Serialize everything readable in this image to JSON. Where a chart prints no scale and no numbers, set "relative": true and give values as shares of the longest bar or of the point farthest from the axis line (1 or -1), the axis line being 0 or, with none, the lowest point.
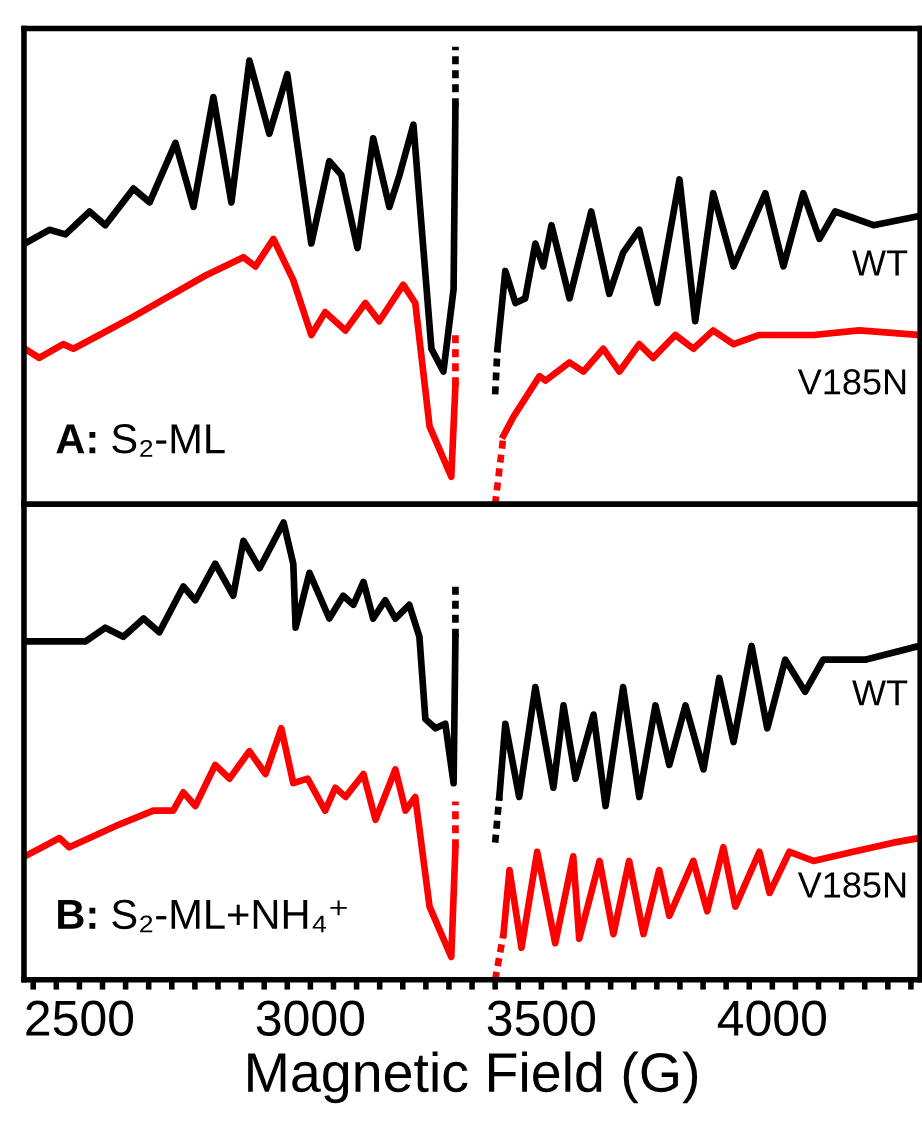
{
  "chart_data": [
    {
      "type": "line",
      "relative": true,
      "xlim": [
        2380,
        4320
      ],
      "tick_labels": false,
      "legend": false,
      "annotations": [
        "A: S₂-ML"
      ],
      "series": [
        {
          "color": "#000000",
          "x": [
            2382,
            2435,
            2470,
            2522,
            2556,
            2617,
            2652,
            2708,
            2747,
            2790,
            2829,
            2868,
            2911,
            2950,
            3002,
            3041,
            3067,
            3102,
            3136,
            3171,
            3193,
            3223,
            3262,
            3288,
            3310,
            3314
          ],
          "values": [
            0.57,
            0.6,
            0.59,
            0.64,
            0.61,
            0.69,
            0.66,
            0.79,
            0.65,
            0.89,
            0.66,
            0.97,
            0.81,
            0.94,
            0.57,
            0.75,
            0.72,
            0.56,
            0.8,
            0.65,
            0.72,
            0.83,
            0.34,
            0.29,
            0.47,
            0.87
          ]
        },
        {
          "color": "#000000",
          "line_style": "dotted",
          "x": [
            3314,
            3314
          ],
          "values": [
            0.87,
            1.0
          ]
        },
        {
          "color": "#000000",
          "line_style": "dotted",
          "x": [
            3400,
            3405
          ],
          "values": [
            0.24,
            0.34
          ]
        },
        {
          "name": "WT",
          "color": "#000000",
          "x": [
            3405,
            3422,
            3444,
            3465,
            3487,
            3504,
            3522,
            3561,
            3608,
            3647,
            3677,
            3712,
            3751,
            3799,
            3833,
            3872,
            3916,
            3985,
            4024,
            4067,
            4102,
            4136,
            4219,
            4318
          ],
          "values": [
            0.34,
            0.51,
            0.44,
            0.45,
            0.57,
            0.52,
            0.61,
            0.45,
            0.64,
            0.46,
            0.55,
            0.6,
            0.44,
            0.71,
            0.4,
            0.68,
            0.52,
            0.68,
            0.52,
            0.68,
            0.58,
            0.64,
            0.61,
            0.63
          ]
        },
        {
          "color": "#ff0000",
          "x": [
            2382,
            2413,
            2465,
            2487,
            2543,
            2617,
            2686,
            2773,
            2855,
            2881,
            2920,
            2963,
            3002,
            3032,
            3076,
            3119,
            3149,
            3201,
            3227,
            3258,
            3305,
            3314
          ],
          "values": [
            0.34,
            0.32,
            0.35,
            0.34,
            0.37,
            0.41,
            0.45,
            0.5,
            0.54,
            0.52,
            0.58,
            0.49,
            0.37,
            0.42,
            0.38,
            0.44,
            0.4,
            0.48,
            0.44,
            0.17,
            0.06,
            0.26
          ]
        },
        {
          "color": "#ff0000",
          "line_style": "dotted",
          "x": [
            3314,
            3314
          ],
          "values": [
            0.26,
            0.38
          ]
        },
        {
          "color": "#ff0000",
          "line_style": "dotted",
          "x": [
            3400,
            3418
          ],
          "values": [
            0.0,
            0.15
          ]
        },
        {
          "name": "V185N",
          "color": "#ff0000",
          "x": [
            3418,
            3439,
            3496,
            3509,
            3561,
            3591,
            3634,
            3669,
            3712,
            3742,
            3790,
            3829,
            3872,
            3916,
            3972,
            4089,
            4188,
            4318
          ],
          "values": [
            0.15,
            0.19,
            0.28,
            0.27,
            0.31,
            0.29,
            0.34,
            0.29,
            0.35,
            0.32,
            0.37,
            0.34,
            0.38,
            0.35,
            0.37,
            0.37,
            0.38,
            0.37
          ]
        }
      ]
    },
    {
      "type": "line",
      "relative": true,
      "xlim": [
        2380,
        4320
      ],
      "tick_labels": "x",
      "legend": false,
      "xlabel": "Magnetic Field (G)",
      "annotations": [
        "B: S₂-ML+NH₄⁺"
      ],
      "xticks": [
        {
          "value": 2400,
          "label": null
        },
        {
          "value": 2450,
          "label": null
        },
        2500,
        {
          "value": 2550,
          "label": null
        },
        {
          "value": 2600,
          "label": null
        },
        {
          "value": 2650,
          "label": null
        },
        {
          "value": 2700,
          "label": null
        },
        {
          "value": 2750,
          "label": null
        },
        {
          "value": 2800,
          "label": null
        },
        {
          "value": 2850,
          "label": null
        },
        {
          "value": 2900,
          "label": null
        },
        {
          "value": 2950,
          "label": null
        },
        3000,
        {
          "value": 3050,
          "label": null
        },
        {
          "value": 3100,
          "label": null
        },
        {
          "value": 3150,
          "label": null
        },
        {
          "value": 3200,
          "label": null
        },
        {
          "value": 3250,
          "label": null
        },
        {
          "value": 3300,
          "label": null
        },
        {
          "value": 3350,
          "label": null
        },
        {
          "value": 3400,
          "label": null
        },
        {
          "value": 3450,
          "label": null
        },
        3500,
        {
          "value": 3550,
          "label": null
        },
        {
          "value": 3600,
          "label": null
        },
        {
          "value": 3650,
          "label": null
        },
        {
          "value": 3700,
          "label": null
        },
        {
          "value": 3750,
          "label": null
        },
        {
          "value": 3800,
          "label": null
        },
        {
          "value": 3850,
          "label": null
        },
        {
          "value": 3900,
          "label": null
        },
        {
          "value": 3950,
          "label": null
        },
        4000,
        {
          "value": 4050,
          "label": null
        },
        {
          "value": 4100,
          "label": null
        },
        {
          "value": 4150,
          "label": null
        },
        {
          "value": 4200,
          "label": null
        },
        {
          "value": 4250,
          "label": null
        },
        {
          "value": 4300,
          "label": null
        }
      ],
      "series": [
        {
          "color": "#000000",
          "x": [
            2382,
            2513,
            2556,
            2595,
            2639,
            2673,
            2725,
            2751,
            2794,
            2833,
            2855,
            2890,
            2942,
            2963,
            2968,
            2998,
            3041,
            3071,
            3093,
            3115,
            3136,
            3162,
            3184,
            3214,
            3236,
            3249,
            3271,
            3292,
            3310,
            3314
          ],
          "values": [
            0.74,
            0.74,
            0.77,
            0.75,
            0.79,
            0.76,
            0.86,
            0.83,
            0.91,
            0.84,
            0.96,
            0.9,
            1.0,
            0.91,
            0.77,
            0.89,
            0.79,
            0.84,
            0.82,
            0.87,
            0.79,
            0.83,
            0.79,
            0.82,
            0.75,
            0.57,
            0.55,
            0.56,
            0.43,
            0.75
          ]
        },
        {
          "color": "#000000",
          "line_style": "dotted",
          "x": [
            3314,
            3314
          ],
          "values": [
            0.75,
            0.86
          ]
        },
        {
          "color": "#000000",
          "line_style": "dotted",
          "x": [
            3400,
            3409
          ],
          "values": [
            0.3,
            0.4
          ]
        },
        {
          "name": "WT",
          "color": "#000000",
          "x": [
            3409,
            3422,
            3452,
            3487,
            3526,
            3548,
            3574,
            3613,
            3639,
            3677,
            3712,
            3747,
            3777,
            3812,
            3851,
            3885,
            3916,
            3955,
            3989,
            4028,
            4071,
            4110,
            4201,
            4318
          ],
          "values": [
            0.4,
            0.56,
            0.4,
            0.64,
            0.42,
            0.6,
            0.44,
            0.58,
            0.38,
            0.64,
            0.4,
            0.6,
            0.47,
            0.6,
            0.46,
            0.66,
            0.52,
            0.73,
            0.55,
            0.7,
            0.63,
            0.7,
            0.7,
            0.73
          ]
        },
        {
          "color": "#ff0000",
          "x": [
            2382,
            2457,
            2478,
            2587,
            2660,
            2703,
            2725,
            2751,
            2794,
            2825,
            2868,
            2903,
            2937,
            2963,
            2994,
            3032,
            3054,
            3076,
            3115,
            3141,
            3184,
            3206,
            3227,
            3258,
            3305,
            3314
          ],
          "values": [
            0.27,
            0.31,
            0.29,
            0.34,
            0.37,
            0.37,
            0.41,
            0.38,
            0.47,
            0.44,
            0.5,
            0.45,
            0.55,
            0.43,
            0.44,
            0.37,
            0.42,
            0.4,
            0.45,
            0.35,
            0.46,
            0.37,
            0.4,
            0.16,
            0.05,
            0.29
          ]
        },
        {
          "color": "#ff0000",
          "line_style": "dotted",
          "x": [
            3314,
            3314
          ],
          "values": [
            0.29,
            0.39
          ]
        },
        {
          "color": "#ff0000",
          "line_style": "dotted",
          "x": [
            3400,
            3418
          ],
          "values": [
            0.0,
            0.1
          ]
        },
        {
          "name": "V185N",
          "color": "#ff0000",
          "x": [
            3418,
            3431,
            3457,
            3491,
            3530,
            3569,
            3582,
            3626,
            3656,
            3690,
            3721,
            3755,
            3777,
            3829,
            3859,
            3894,
            3920,
            3972,
            3994,
            4037,
            4089,
            4175,
            4262,
            4318
          ],
          "values": [
            0.1,
            0.24,
            0.07,
            0.28,
            0.08,
            0.27,
            0.09,
            0.26,
            0.1,
            0.26,
            0.1,
            0.24,
            0.14,
            0.26,
            0.15,
            0.29,
            0.16,
            0.28,
            0.19,
            0.28,
            0.26,
            0.28,
            0.3,
            0.31
          ]
        }
      ]
    }
  ]
}
